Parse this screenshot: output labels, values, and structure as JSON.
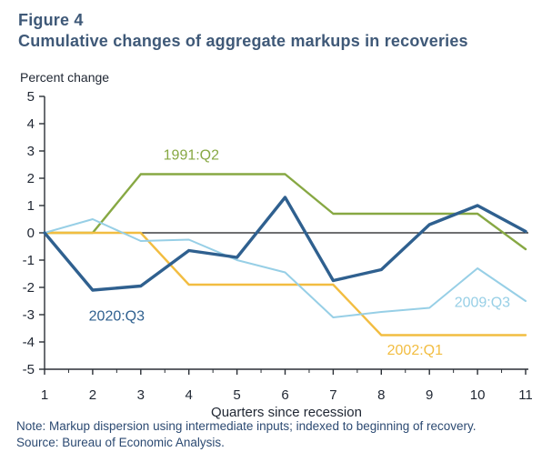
{
  "header": {
    "figure_label": "Figure 4",
    "title": "Cumulative changes of aggregate markups in recoveries"
  },
  "chart_data": {
    "type": "line",
    "title": "Cumulative changes of aggregate markups in recoveries",
    "ylabel": "Percent change",
    "xlabel": "Quarters since recession",
    "x": [
      1,
      2,
      3,
      4,
      5,
      6,
      7,
      8,
      9,
      10,
      11
    ],
    "xlim": [
      1,
      11
    ],
    "ylim": [
      -5,
      5
    ],
    "y_ticks": [
      5,
      4,
      3,
      2,
      1,
      0,
      -1,
      -2,
      -3,
      -4,
      -5
    ],
    "x_ticks": [
      1,
      2,
      3,
      4,
      5,
      6,
      7,
      8,
      9,
      10,
      11
    ],
    "grid": false,
    "zero_line": true,
    "legend_position": "inline-labels",
    "axis_color": "#2a2f36",
    "tick_label_color": "#212834",
    "series": [
      {
        "name": "1991:Q2",
        "color": "#87a843",
        "width": 2.4,
        "values": [
          0,
          0,
          2.15,
          2.15,
          2.15,
          2.15,
          0.7,
          0.7,
          0.7,
          0.7,
          -0.6
        ],
        "label_pos": {
          "q": 4.05,
          "v": 2.85
        }
      },
      {
        "name": "2002:Q1",
        "color": "#f2bd41",
        "width": 2.4,
        "values": [
          0,
          0,
          0,
          -1.9,
          -1.9,
          -1.9,
          -1.9,
          -3.75,
          -3.75,
          -3.75,
          -3.75
        ],
        "label_pos": {
          "q": 8.7,
          "v": -4.3
        }
      },
      {
        "name": "2009:Q3",
        "color": "#97cfe6",
        "width": 2,
        "values": [
          0,
          0.5,
          -0.3,
          -0.25,
          -1.0,
          -1.45,
          -3.1,
          -2.9,
          -2.75,
          -1.3,
          -2.5
        ],
        "label_pos": {
          "q": 10.1,
          "v": -2.55
        }
      },
      {
        "name": "2020:Q3",
        "color": "#2f608f",
        "width": 3.4,
        "values": [
          0,
          -2.1,
          -1.95,
          -0.65,
          -0.9,
          1.3,
          -1.75,
          -1.35,
          0.3,
          1.0,
          0.05
        ],
        "label_pos": {
          "q": 2.5,
          "v": -3.05
        }
      }
    ]
  },
  "footer": {
    "note": "Note: Markup dispersion using intermediate inputs; indexed to beginning of recovery.",
    "source": "Source: Bureau of Economic Analysis."
  }
}
